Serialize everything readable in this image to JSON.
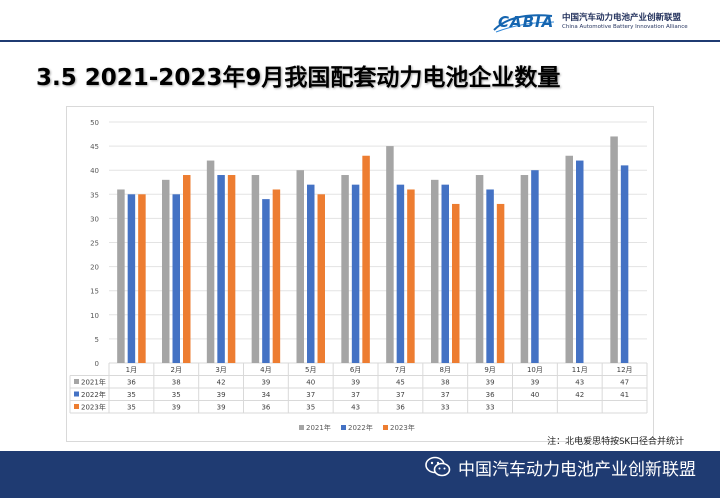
{
  "header": {
    "logo_text": "CABIA",
    "org_cn": "中国汽车动力电池产业创新联盟",
    "org_en": "China Automotive Battery Innovation Alliance"
  },
  "title": "3.5 2021-2023年9月我国配套动力电池企业数量",
  "note": "注：北电爱思特按SK口径合并统计",
  "footer": {
    "brand": "中国汽车动力电池产业创新联盟"
  },
  "colors": {
    "2021年": "#a5a5a5",
    "2022年": "#4472c4",
    "2023年": "#ed7d31"
  },
  "chart_data": {
    "type": "bar",
    "categories": [
      "1月",
      "2月",
      "3月",
      "4月",
      "5月",
      "6月",
      "7月",
      "8月",
      "9月",
      "10月",
      "11月",
      "12月"
    ],
    "series": [
      {
        "name": "2021年",
        "values": [
          36,
          38,
          42,
          39,
          40,
          39,
          45,
          38,
          39,
          39,
          43,
          47
        ]
      },
      {
        "name": "2022年",
        "values": [
          35,
          35,
          39,
          34,
          37,
          37,
          37,
          37,
          36,
          40,
          42,
          41
        ]
      },
      {
        "name": "2023年",
        "values": [
          35,
          39,
          39,
          36,
          35,
          43,
          36,
          33,
          33,
          null,
          null,
          null
        ]
      }
    ],
    "ylim": [
      0,
      50
    ],
    "yticks": [
      0,
      5,
      10,
      15,
      20,
      25,
      30,
      35,
      40,
      45,
      50
    ],
    "grid": true,
    "legend": "bottom",
    "data_table": true
  }
}
